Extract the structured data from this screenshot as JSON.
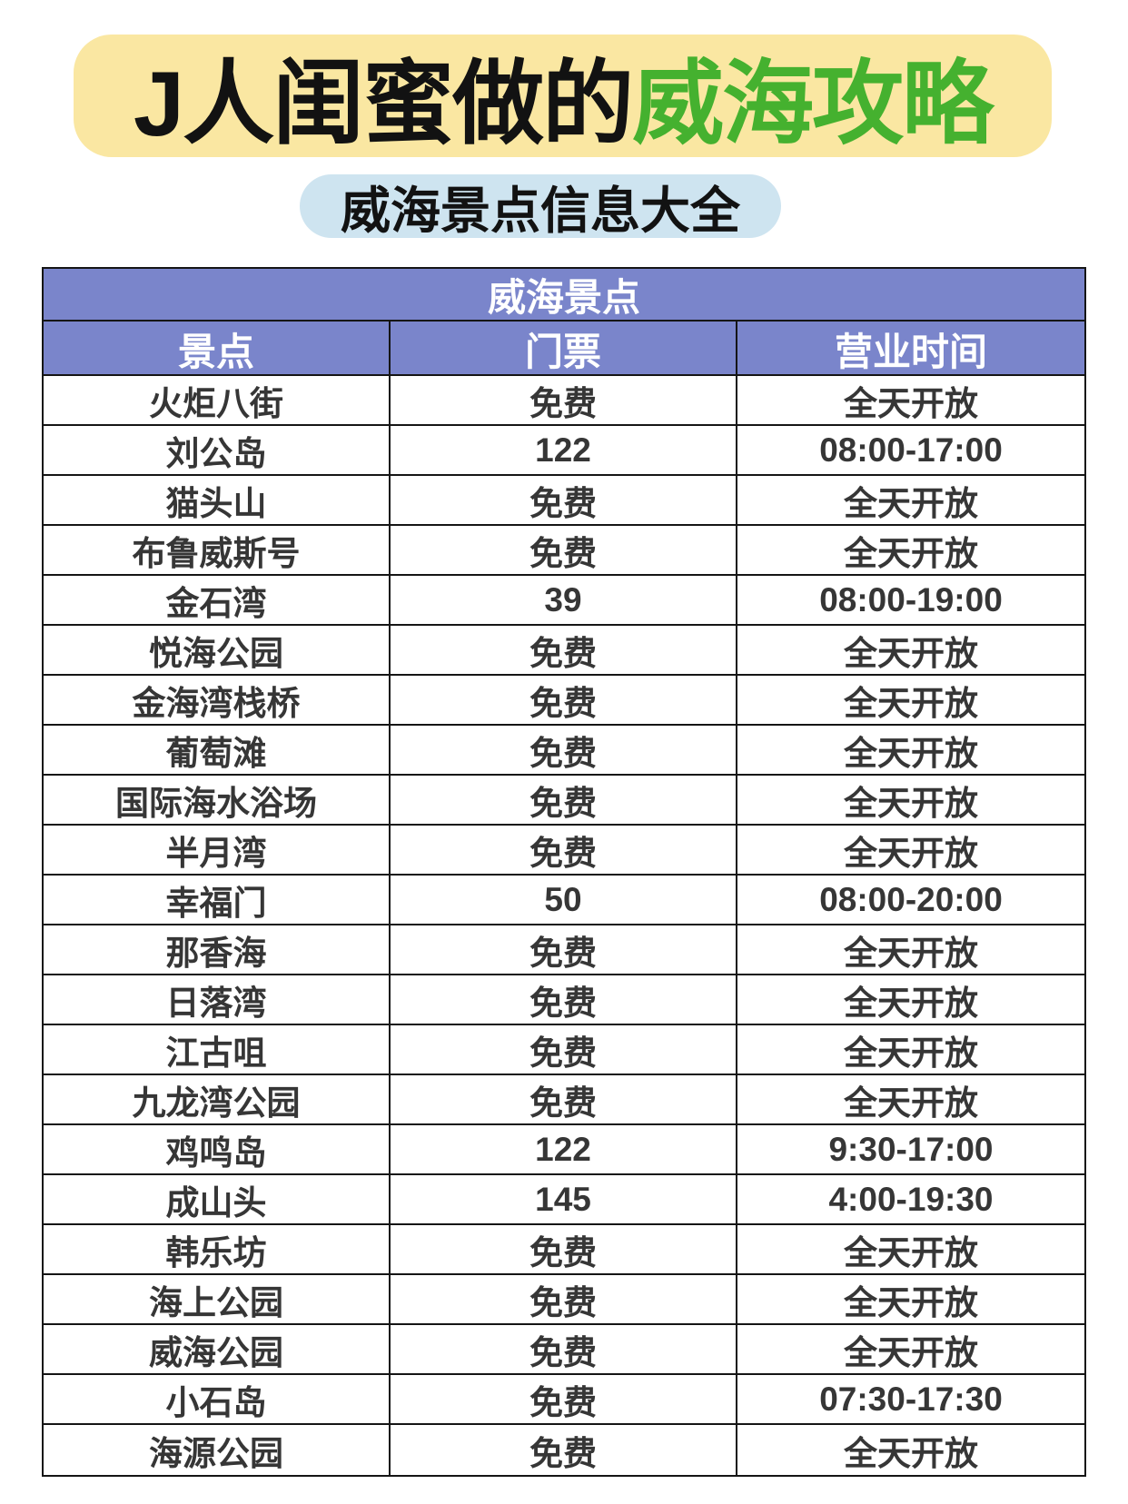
{
  "header": {
    "title_prefix": "J人闺蜜做的",
    "title_highlight": "威海攻略",
    "subtitle": "威海景点信息大全"
  },
  "table": {
    "title": "威海景点",
    "columns": [
      "景点",
      "门票",
      "营业时间"
    ],
    "rows": [
      {
        "name": "火炬八街",
        "ticket": "免费",
        "hours": "全天开放"
      },
      {
        "name": "刘公岛",
        "ticket": "122",
        "hours": "08:00-17:00"
      },
      {
        "name": "猫头山",
        "ticket": "免费",
        "hours": "全天开放"
      },
      {
        "name": "布鲁威斯号",
        "ticket": "免费",
        "hours": "全天开放"
      },
      {
        "name": "金石湾",
        "ticket": "39",
        "hours": "08:00-19:00"
      },
      {
        "name": "悦海公园",
        "ticket": "免费",
        "hours": "全天开放"
      },
      {
        "name": "金海湾栈桥",
        "ticket": "免费",
        "hours": "全天开放"
      },
      {
        "name": "葡萄滩",
        "ticket": "免费",
        "hours": "全天开放"
      },
      {
        "name": "国际海水浴场",
        "ticket": "免费",
        "hours": "全天开放"
      },
      {
        "name": "半月湾",
        "ticket": "免费",
        "hours": "全天开放"
      },
      {
        "name": "幸福门",
        "ticket": "50",
        "hours": "08:00-20:00"
      },
      {
        "name": "那香海",
        "ticket": "免费",
        "hours": "全天开放"
      },
      {
        "name": "日落湾",
        "ticket": "免费",
        "hours": "全天开放"
      },
      {
        "name": "江古咀",
        "ticket": "免费",
        "hours": "全天开放"
      },
      {
        "name": "九龙湾公园",
        "ticket": "免费",
        "hours": "全天开放"
      },
      {
        "name": "鸡鸣岛",
        "ticket": "122",
        "hours": "9:30-17:00"
      },
      {
        "name": "成山头",
        "ticket": "145",
        "hours": "4:00-19:30"
      },
      {
        "name": "韩乐坊",
        "ticket": "免费",
        "hours": "全天开放"
      },
      {
        "name": "海上公园",
        "ticket": "免费",
        "hours": "全天开放"
      },
      {
        "name": "威海公园",
        "ticket": "免费",
        "hours": "全天开放"
      },
      {
        "name": "小石岛",
        "ticket": "免费",
        "hours": "07:30-17:30"
      },
      {
        "name": "海源公园",
        "ticket": "免费",
        "hours": "全天开放"
      }
    ]
  },
  "colors": {
    "title_bg": "#FAE7A2",
    "title_highlight": "#45B12F",
    "subtitle_bg": "#CEE4F0",
    "table_header_bg": "#7A85CB",
    "border": "#151515",
    "body_text": "#363636"
  }
}
